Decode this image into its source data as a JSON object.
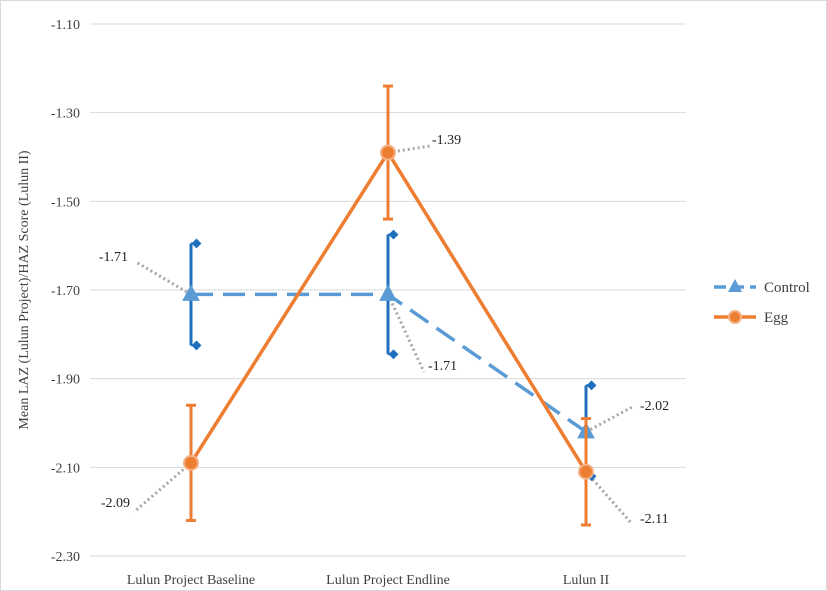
{
  "chart_data": {
    "type": "line",
    "ylabel": "Mean LAZ (Lulun Project)/HAZ Score (Lulun II)",
    "xlabel": "",
    "title": "",
    "categories": [
      "Lulun Project Baseline",
      "Lulun Project Endline",
      "Lulun II"
    ],
    "ylim": [
      -2.3,
      -1.1
    ],
    "yticks": [
      "-1.10",
      "-1.30",
      "-1.50",
      "-1.70",
      "-1.90",
      "-2.10",
      "-2.30"
    ],
    "grid": true,
    "legend_position": "right",
    "series": [
      {
        "name": "Control",
        "values": [
          -1.71,
          -1.71,
          -2.02
        ],
        "error_low": [
          -1.825,
          -1.845,
          -2.12
        ],
        "error_high": [
          -1.595,
          -1.575,
          -1.915
        ],
        "labels": [
          "-1.71",
          "-1.71",
          "-2.02"
        ],
        "color": "#5b9bd5",
        "error_color": "#1f6fbf",
        "marker": "triangle"
      },
      {
        "name": "Egg",
        "values": [
          -2.09,
          -1.39,
          -2.11
        ],
        "error_low": [
          -2.22,
          -1.54,
          -2.23
        ],
        "error_high": [
          -1.96,
          -1.24,
          -1.99
        ],
        "labels": [
          "-2.09",
          "-1.39",
          "-2.11"
        ],
        "color": "#ed7d31",
        "error_color": "#ed7d31",
        "marker": "circle"
      }
    ]
  }
}
